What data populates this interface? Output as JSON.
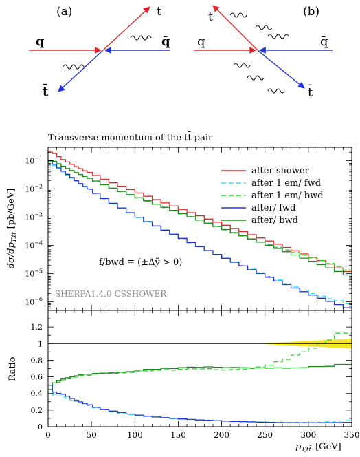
{
  "diagrams": {
    "a": {
      "tag": "(a)",
      "labels": {
        "q": "q",
        "qbar": "q̄",
        "t": "t",
        "tbar": "t̄"
      },
      "colors": {
        "incoming": "#e8242a",
        "antiquark": "#2233dd",
        "outgoing_t": "#e8242a",
        "outgoing_tbar": "#2233dd"
      }
    },
    "b": {
      "tag": "(b)",
      "labels": {
        "q": "q",
        "qbar": "q̄",
        "t": "t",
        "tbar": "t̄"
      },
      "colors": {
        "incoming": "#e8242a",
        "antiquark": "#2233dd",
        "outgoing_t": "#e8242a",
        "outgoing_tbar": "#2233dd"
      }
    }
  },
  "chart_data": {
    "type": "line",
    "title": "Transverse momentum of the tt̄ pair",
    "ylabel": "dσ/dp_T,tt̄ [pb/GeV]",
    "ylabel_main": "dσ/dp",
    "ylabel_sub": "T,tt̄",
    "ylabel_unit": "[pb/GeV]",
    "ratio_ylabel": "Ratio",
    "xlabel_main": "p",
    "xlabel_sub": "T,tt̄",
    "xlabel_unit": "[GeV]",
    "annotation": "f/bwd ≡ (±Δỹ > 0)",
    "watermark": "SHERPA1.4.0 CSSHOWER",
    "log_y": true,
    "xlim": [
      0,
      350
    ],
    "ylim": [
      5e-07,
      0.3
    ],
    "ratio_ylim": [
      0,
      1.4
    ],
    "xticks": [
      0,
      50,
      100,
      150,
      200,
      250,
      300,
      350
    ],
    "yticks": [
      {
        "value": 1e-06,
        "label": "10",
        "exp": "−6"
      },
      {
        "value": 1e-05,
        "label": "10",
        "exp": "−5"
      },
      {
        "value": 0.0001,
        "label": "10",
        "exp": "−4"
      },
      {
        "value": 0.001,
        "label": "10",
        "exp": "−3"
      },
      {
        "value": 0.01,
        "label": "10",
        "exp": "−2"
      },
      {
        "value": 0.1,
        "label": "10",
        "exp": "−1"
      }
    ],
    "ratio_yticks": [
      0,
      0.2,
      0.4,
      0.6,
      0.8,
      1,
      1.2
    ],
    "ratio_band": {
      "x_from": 240,
      "x_to": 350,
      "low": [
        1.0,
        0.94
      ],
      "high": [
        1.0,
        1.06
      ],
      "color": "#f5e62a"
    },
    "x": [
      2.5,
      7.5,
      12.5,
      17.5,
      22.5,
      27.5,
      32.5,
      37.5,
      42.5,
      47.5,
      55,
      65,
      75,
      85,
      95,
      105,
      115,
      125,
      135,
      145,
      155,
      165,
      175,
      185,
      195,
      205,
      215,
      225,
      235,
      245,
      255,
      265,
      275,
      285,
      295,
      305,
      315,
      325,
      335,
      345
    ],
    "series": [
      {
        "name": "after shower",
        "color": "#e8242a",
        "dash": "",
        "values": [
          0.2,
          0.18,
          0.14,
          0.11,
          0.09,
          0.075,
          0.062,
          0.052,
          0.044,
          0.038,
          0.03,
          0.022,
          0.0165,
          0.0125,
          0.0095,
          0.0072,
          0.0055,
          0.0042,
          0.0032,
          0.0025,
          0.0019,
          0.00145,
          0.00112,
          0.00086,
          0.00067,
          0.00052,
          0.0004,
          0.00031,
          0.00024,
          0.000185,
          0.000143,
          0.00011,
          8.5e-05,
          6.5e-05,
          5e-05,
          3.8e-05,
          2.9e-05,
          2.2e-05,
          1.6e-05,
          1.2e-05
        ]
      },
      {
        "name": "after 1 em/ fwd",
        "color": "#2ee6f2",
        "dash": "7,4",
        "values": [
          0.09,
          0.068,
          0.052,
          0.04,
          0.031,
          0.024,
          0.0188,
          0.0148,
          0.0118,
          0.0096,
          0.0068,
          0.0045,
          0.003,
          0.00205,
          0.0014,
          0.00097,
          0.00068,
          0.00048,
          0.00034,
          0.00024,
          0.000172,
          0.000124,
          9e-05,
          6.6e-05,
          4.8e-05,
          3.5e-05,
          2.6e-05,
          1.95e-05,
          1.45e-05,
          1.08e-05,
          8e-06,
          6e-06,
          4.5e-06,
          3.4e-06,
          2.6e-06,
          2e-06,
          1.6e-06,
          1.3e-06,
          1.1e-06,
          9e-07
        ]
      },
      {
        "name": "after 1 em/ bwd",
        "color": "#2cd626",
        "dash": "7,4",
        "values": [
          0.09,
          0.09,
          0.075,
          0.062,
          0.052,
          0.044,
          0.037,
          0.032,
          0.027,
          0.0235,
          0.019,
          0.014,
          0.0106,
          0.0081,
          0.0062,
          0.0048,
          0.0037,
          0.00285,
          0.0022,
          0.0017,
          0.00131,
          0.00101,
          0.00078,
          0.0006,
          0.00046,
          0.000355,
          0.000275,
          0.000215,
          0.000168,
          0.000133,
          0.000106,
          8.6e-05,
          6.9e-05,
          5.6e-05,
          4.5e-05,
          3.6e-05,
          2.9e-05,
          2.3e-05,
          1.8e-05,
          1.35e-05
        ]
      },
      {
        "name": "after/ fwd",
        "color": "#2233dd",
        "dash": "",
        "values": [
          0.1,
          0.075,
          0.056,
          0.043,
          0.033,
          0.0255,
          0.0198,
          0.0155,
          0.0123,
          0.01,
          0.007,
          0.0046,
          0.0031,
          0.00212,
          0.00145,
          0.001,
          0.0007,
          0.00049,
          0.00035,
          0.00025,
          0.000178,
          0.000127,
          9.1e-05,
          6.6e-05,
          4.8e-05,
          3.5e-05,
          2.55e-05,
          1.88e-05,
          1.38e-05,
          1.02e-05,
          7.5e-06,
          5.5e-06,
          4.1e-06,
          3.1e-06,
          2.3e-06,
          1.75e-06,
          1.35e-06,
          1.05e-06,
          8e-07,
          6.2e-07
        ]
      },
      {
        "name": "after/ bwd",
        "color": "#1a8a1a",
        "dash": "",
        "values": [
          0.1,
          0.095,
          0.078,
          0.064,
          0.053,
          0.045,
          0.038,
          0.0325,
          0.0278,
          0.024,
          0.0192,
          0.0142,
          0.0107,
          0.0082,
          0.0063,
          0.0049,
          0.0038,
          0.0029,
          0.00225,
          0.00175,
          0.00135,
          0.00104,
          0.0008,
          0.00062,
          0.00048,
          0.00037,
          0.000285,
          0.00022,
          0.00017,
          0.000131,
          0.000101,
          7.8e-05,
          6e-05,
          4.6e-05,
          3.55e-05,
          2.75e-05,
          2.1e-05,
          1.6e-05,
          1.2e-05,
          9e-06
        ]
      }
    ],
    "ratio_series": [
      {
        "name": "after 1 em/ fwd",
        "color": "#2ee6f2",
        "dash": "7,4",
        "values": [
          0.45,
          0.38,
          0.37,
          0.36,
          0.345,
          0.32,
          0.303,
          0.285,
          0.268,
          0.253,
          0.227,
          0.205,
          0.182,
          0.164,
          0.147,
          0.135,
          0.124,
          0.114,
          0.106,
          0.096,
          0.09,
          0.086,
          0.08,
          0.077,
          0.072,
          0.067,
          0.065,
          0.063,
          0.06,
          0.058,
          0.056,
          0.055,
          0.053,
          0.052,
          0.052,
          0.053,
          0.055,
          0.059,
          0.069,
          0.075
        ]
      },
      {
        "name": "after 1 em/ bwd",
        "color": "#2cd626",
        "dash": "7,4",
        "values": [
          0.45,
          0.5,
          0.536,
          0.564,
          0.578,
          0.587,
          0.597,
          0.615,
          0.614,
          0.618,
          0.633,
          0.636,
          0.642,
          0.648,
          0.653,
          0.667,
          0.673,
          0.679,
          0.688,
          0.68,
          0.69,
          0.697,
          0.696,
          0.698,
          0.687,
          0.683,
          0.688,
          0.694,
          0.7,
          0.72,
          0.741,
          0.782,
          0.812,
          0.862,
          0.9,
          0.947,
          1.0,
          1.045,
          1.125,
          1.125
        ]
      },
      {
        "name": "after/ fwd",
        "color": "#2233dd",
        "dash": "",
        "values": [
          0.5,
          0.417,
          0.4,
          0.391,
          0.367,
          0.34,
          0.319,
          0.298,
          0.28,
          0.263,
          0.233,
          0.209,
          0.188,
          0.17,
          0.153,
          0.139,
          0.127,
          0.117,
          0.109,
          0.1,
          0.094,
          0.088,
          0.081,
          0.077,
          0.072,
          0.067,
          0.064,
          0.061,
          0.058,
          0.055,
          0.052,
          0.05,
          0.048,
          0.048,
          0.046,
          0.046,
          0.047,
          0.048,
          0.05,
          0.052
        ]
      },
      {
        "name": "after/ bwd",
        "color": "#1a8a1a",
        "dash": "",
        "values": [
          0.5,
          0.528,
          0.557,
          0.582,
          0.589,
          0.6,
          0.613,
          0.625,
          0.632,
          0.632,
          0.64,
          0.645,
          0.648,
          0.656,
          0.663,
          0.681,
          0.691,
          0.69,
          0.703,
          0.7,
          0.711,
          0.717,
          0.714,
          0.721,
          0.716,
          0.712,
          0.713,
          0.71,
          0.708,
          0.708,
          0.706,
          0.709,
          0.706,
          0.708,
          0.71,
          0.724,
          0.724,
          0.727,
          0.75,
          0.75
        ]
      }
    ]
  }
}
